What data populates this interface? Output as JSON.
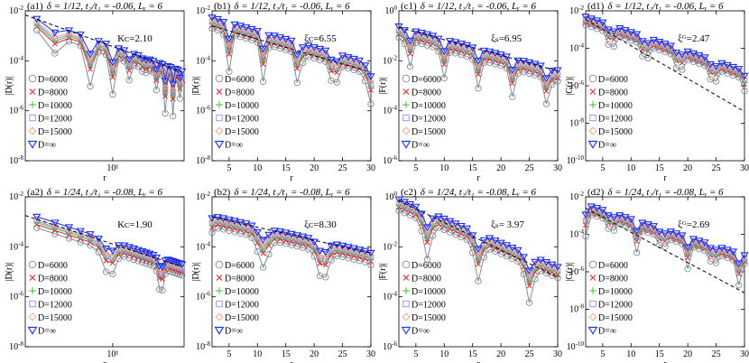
{
  "legend_entries": [
    "D=6000",
    "D=8000",
    "D=10000",
    "D=12000",
    "D=15000",
    "D=∞"
  ],
  "series_styles": [
    {
      "name": "D=6000",
      "color": "#7f8c99",
      "marker": "circle"
    },
    {
      "name": "D=8000",
      "color": "#e8202a",
      "marker": "cross"
    },
    {
      "name": "D=10000",
      "color": "#33c433",
      "marker": "plus"
    },
    {
      "name": "D=12000",
      "color": "#8f8fe8",
      "marker": "square"
    },
    {
      "name": "D=15000",
      "color": "#f0a07a",
      "marker": "diamond"
    },
    {
      "name": "D=∞",
      "color": "#1a2ff0",
      "marker": "triangle-down"
    }
  ],
  "chart_data": [
    {
      "id": "a1",
      "type": "line",
      "panel_label": "(a1)",
      "title": "δ = 1/12, t₂/t₁ = -0.06, Lᵧ = 6",
      "xscale": "log",
      "xlim": [
        2.5,
        31
      ],
      "ylim_exp": [
        -8,
        -2
      ],
      "xticks": [
        10
      ],
      "xticklabels": [
        "10¹"
      ],
      "yticks": [
        -8,
        -6,
        -4,
        -2
      ],
      "xlabel": "r",
      "ylabel": "|D(r)|",
      "annotation": "Kᴄ=2.10",
      "fit": {
        "kind": "power",
        "exponent": -2.1,
        "x0": 2.5,
        "y0": 0.0068,
        "x1": 30
      },
      "curve": {
        "kind": "power",
        "exponent": -2.1,
        "A": 0.0115,
        "period": 3.2,
        "dip_depth": 0.78,
        "dip_width": 0.32,
        "offset": 0.5
      }
    },
    {
      "id": "b1",
      "type": "line",
      "panel_label": "(b1)",
      "title": "δ = 1/12, t₂/t₁ = -0.06, Lᵧ = 6",
      "xscale": "linear",
      "xlim": [
        2,
        30
      ],
      "ylim_exp": [
        -8,
        -2
      ],
      "xticks": [
        5,
        10,
        15,
        20,
        25,
        30
      ],
      "xticklabels": [
        "5",
        "10",
        "15",
        "20",
        "25",
        "30"
      ],
      "yticks": [
        -8,
        -6,
        -4,
        -2
      ],
      "xlabel": "r",
      "ylabel": "|D(r)|",
      "annotation": "ξᴄ=6.55",
      "fit": {
        "kind": "exp",
        "xi": 6.55,
        "x0": 2,
        "y0": 0.0025,
        "x1": 30
      },
      "curve": {
        "kind": "exp",
        "xi": 6.55,
        "A": 0.0055,
        "period": 6.2,
        "dip_depth": 0.75,
        "dip_width": 0.55,
        "offset": 4.9
      }
    },
    {
      "id": "c1",
      "type": "line",
      "panel_label": "(c1)",
      "title": "δ = 1/12, t₂/t₁ = -0.06, Lᵧ = 6",
      "xscale": "linear",
      "xlim": [
        2,
        30
      ],
      "ylim_exp": [
        -6,
        0
      ],
      "xticks": [
        5,
        10,
        15,
        20,
        25,
        30
      ],
      "xticklabels": [
        "5",
        "10",
        "15",
        "20",
        "25",
        "30"
      ],
      "yticks": [
        -6,
        -4,
        -2,
        0
      ],
      "xlabel": "r",
      "ylabel": "|F(r)|",
      "annotation": "ξₛ=6.95",
      "fit": {
        "kind": "exp",
        "xi": 6.95,
        "x0": 2,
        "y0": 0.22,
        "x1": 30
      },
      "curve": {
        "kind": "exp",
        "xi": 6.95,
        "A": 0.24,
        "period": 6.1,
        "dip_depth": 0.55,
        "dip_width": 0.6,
        "offset": 3.8
      }
    },
    {
      "id": "d1",
      "type": "line",
      "panel_label": "(d1)",
      "title": "δ = 1/12, t₂/t₁ = -0.06, Lᵧ = 6",
      "xscale": "linear",
      "xlim": [
        2,
        30
      ],
      "ylim_exp": [
        -10,
        -2
      ],
      "xticks": [
        5,
        10,
        15,
        20,
        25,
        30
      ],
      "xticklabels": [
        "5",
        "10",
        "15",
        "20",
        "25",
        "30"
      ],
      "yticks": [
        -10,
        -8,
        -6,
        -4,
        -2
      ],
      "xlabel": "r",
      "ylabel": "|G(r)|",
      "annotation": "ξᴳ=2.47",
      "fit": {
        "kind": "exp",
        "xi": 2.47,
        "x0": 2,
        "y0": 0.0035,
        "x1": 30
      },
      "curve": {
        "kind": "exp",
        "xi": 4.2,
        "A": 0.005,
        "period": 6.0,
        "dip_depth": 0.6,
        "dip_width": 0.6,
        "offset": 6.5
      }
    },
    {
      "id": "a2",
      "type": "line",
      "panel_label": "(a2)",
      "title": "δ = 1/24, t₂/t₁ = -0.08, Lᵧ = 6",
      "xscale": "log",
      "xlim": [
        2.5,
        31
      ],
      "ylim_exp": [
        -8,
        -2
      ],
      "xticks": [
        10
      ],
      "xticklabels": [
        "10¹"
      ],
      "yticks": [
        -8,
        -6,
        -4,
        -2
      ],
      "xlabel": "r",
      "ylabel": "|D(r)|",
      "annotation": "Kᴄ=1.90",
      "fit": {
        "kind": "power",
        "exponent": -1.9,
        "x0": 2.5,
        "y0": 0.0018,
        "x1": 30
      },
      "curve": {
        "kind": "power",
        "exponent": -1.9,
        "A": 0.0035,
        "period": 12,
        "dip_depth": 0.5,
        "dip_width": 1.1,
        "offset": 9.5
      }
    },
    {
      "id": "b2",
      "type": "line",
      "panel_label": "(b2)",
      "title": "δ = 1/24, t₂/t₁ = -0.08, Lᵧ = 6",
      "xscale": "linear",
      "xlim": [
        2,
        30
      ],
      "ylim_exp": [
        -8,
        -2
      ],
      "xticks": [
        5,
        10,
        15,
        20,
        25,
        30
      ],
      "xticklabels": [
        "5",
        "10",
        "15",
        "20",
        "25",
        "30"
      ],
      "yticks": [
        -8,
        -6,
        -4,
        -2
      ],
      "xlabel": "r",
      "ylabel": "|D(r)|",
      "annotation": "ξᴄ=8.30",
      "fit": {
        "kind": "exp",
        "xi": 8.3,
        "x0": 2,
        "y0": 0.0016,
        "x1": 30
      },
      "curve": {
        "kind": "exp",
        "xi": 8.3,
        "A": 0.0018,
        "period": 10.5,
        "dip_depth": 0.55,
        "dip_width": 1.2,
        "offset": 11
      }
    },
    {
      "id": "c2",
      "type": "line",
      "panel_label": "(c2)",
      "title": "δ = 1/24, t₂/t₁ = -0.08, Lᵧ = 6",
      "xscale": "linear",
      "xlim": [
        2,
        30
      ],
      "ylim_exp": [
        -6,
        0
      ],
      "xticks": [
        5,
        10,
        15,
        20,
        25,
        30
      ],
      "xticklabels": [
        "5",
        "10",
        "15",
        "20",
        "25",
        "30"
      ],
      "yticks": [
        -6,
        -4,
        -2,
        0
      ],
      "xlabel": "r",
      "ylabel": "|F(r)|",
      "annotation": "ξₛ= 3.97",
      "fit": {
        "kind": "exp",
        "xi": 3.97,
        "x0": 2,
        "y0": 0.7,
        "x1": 30
      },
      "curve": {
        "kind": "exp",
        "xi": 4.5,
        "A": 0.8,
        "period": 9.0,
        "dip_depth": 0.7,
        "dip_width": 0.9,
        "offset": 7
      }
    },
    {
      "id": "d2",
      "type": "line",
      "panel_label": "(d2)",
      "title": "δ = 1/24, t₂/t₁ = -0.08, Lᵧ = 6",
      "xscale": "linear",
      "xlim": [
        2,
        30
      ],
      "ylim_exp": [
        -10,
        -2
      ],
      "xticks": [
        5,
        10,
        15,
        20,
        25,
        30
      ],
      "xticklabels": [
        "5",
        "10",
        "15",
        "20",
        "25",
        "30"
      ],
      "yticks": [
        -10,
        -8,
        -6,
        -4,
        -2
      ],
      "xlabel": "r",
      "ylabel": "|G(r)|",
      "annotation": "ξᴳ=2.69",
      "fit": {
        "kind": "exp",
        "xi": 2.69,
        "x0": 2,
        "y0": 0.0025,
        "x1": 30
      },
      "curve": {
        "kind": "exp",
        "xi": 4.5,
        "A": 0.004,
        "period": 4.5,
        "dip_depth": 0.6,
        "dip_width": 0.5,
        "offset": 6.5
      }
    }
  ]
}
